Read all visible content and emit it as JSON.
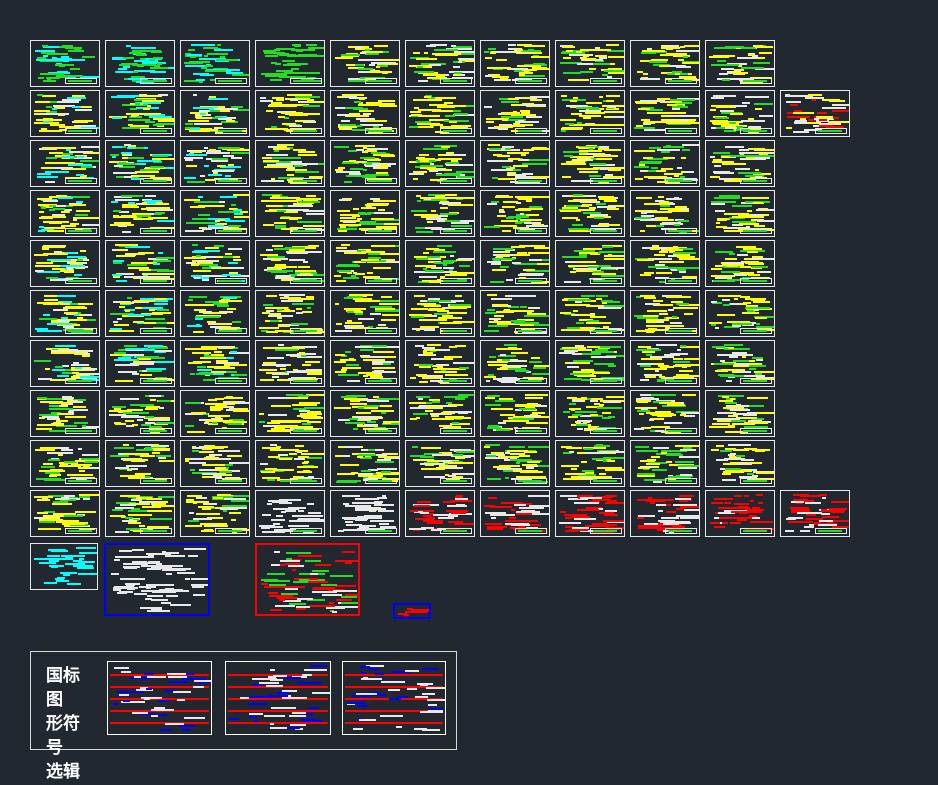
{
  "legend_block": {
    "title_lines": [
      "国标图",
      "形符号",
      "选辑"
    ]
  },
  "colors": {
    "background": "#212830",
    "sheet_border": "#e8e8e8",
    "text_green": "#22dd22",
    "text_yellow": "#ffff00",
    "text_cyan": "#00ffff",
    "red": "#ff0000",
    "blue": "#0000ff"
  },
  "layout_counts": {
    "sheet_rows": 10,
    "symbol_sheets": 3
  }
}
